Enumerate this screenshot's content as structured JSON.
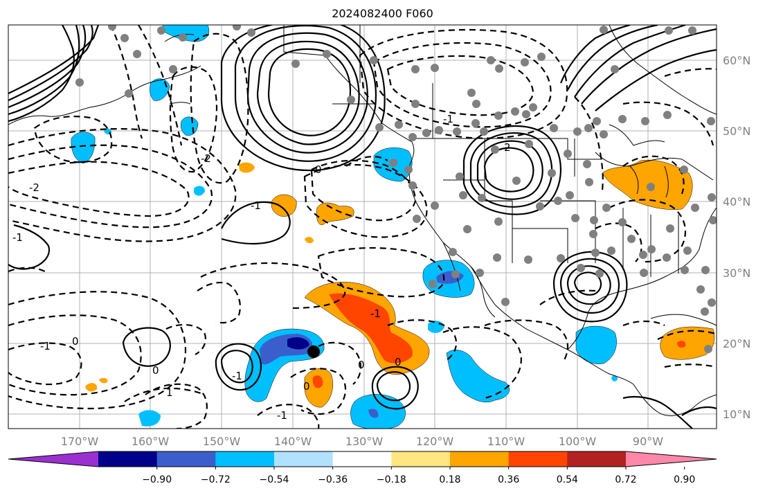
{
  "title": "2024082400 F060",
  "map": {
    "lon_ticks": [
      "170°W",
      "160°W",
      "150°W",
      "140°W",
      "130°W",
      "120°W",
      "110°W",
      "100°W",
      "90°W"
    ],
    "lat_ticks": [
      "60°N",
      "50°N",
      "40°N",
      "30°N",
      "20°N",
      "10°N"
    ],
    "grid": true,
    "contour_labels": [
      "-1",
      "0",
      "-1",
      "0",
      "0",
      "-2",
      "-1",
      "0",
      "-1",
      "0",
      "-2",
      "-1",
      "2",
      "-1",
      "0",
      "1",
      "-1"
    ]
  },
  "colorbar": {
    "orientation": "horizontal",
    "extend": "both",
    "labels": [
      "−0.90",
      "−0.72",
      "−0.54",
      "−0.36",
      "−0.18",
      "0.18",
      "0.36",
      "0.54",
      "0.72",
      "0.90"
    ],
    "colors": [
      "#9b30d0",
      "#00008b",
      "#3a5fcd",
      "#00bfff",
      "#b0e2ff",
      "#ffffff",
      "#ffe680",
      "#ffa500",
      "#ff4500",
      "#b22222",
      "#ff88aa"
    ]
  },
  "marker_colors": {
    "station": "#808080",
    "highlight": "#000000",
    "land_positive": "#ffa500",
    "ocean_negative": "#00bfff"
  }
}
